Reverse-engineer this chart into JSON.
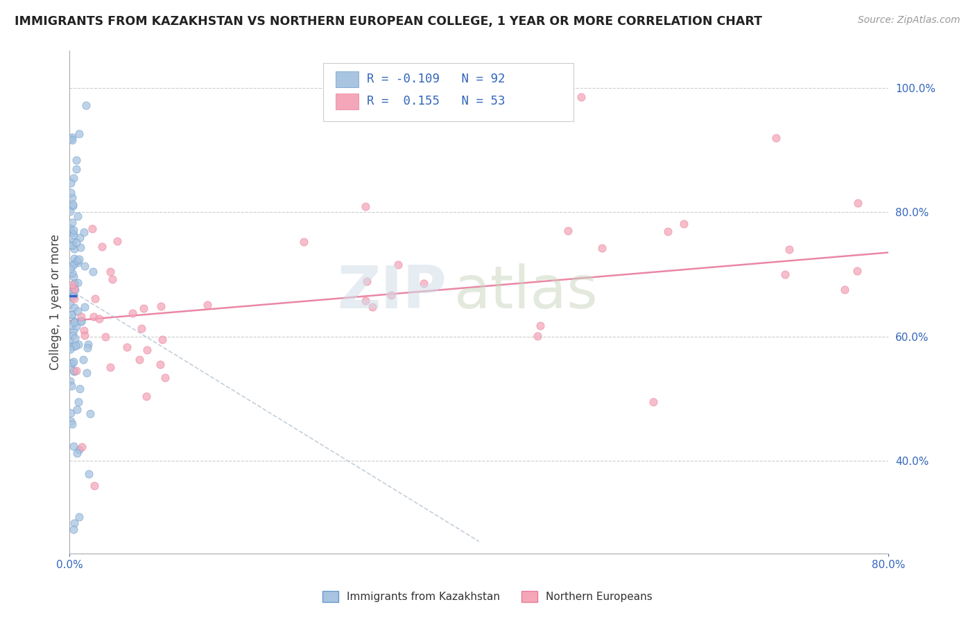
{
  "title": "IMMIGRANTS FROM KAZAKHSTAN VS NORTHERN EUROPEAN COLLEGE, 1 YEAR OR MORE CORRELATION CHART",
  "source": "Source: ZipAtlas.com",
  "ylabel": "College, 1 year or more",
  "legend_label1": "Immigrants from Kazakhstan",
  "legend_label2": "Northern Europeans",
  "color1": "#a8c4e0",
  "color1_edge": "#6699cc",
  "color2": "#f4a7b9",
  "color2_edge": "#e8799a",
  "trendline1_solid_color": "#3366cc",
  "trendline1_dash_color": "#aabbcc",
  "trendline2_color": "#e8799a",
  "watermark_zip_color": "#c8d8e8",
  "watermark_atlas_color": "#c8d8c0",
  "background_color": "#ffffff",
  "xlim": [
    0.0,
    0.8
  ],
  "ylim": [
    0.25,
    1.06
  ],
  "right_yticks": [
    0.4,
    0.6,
    0.8,
    1.0
  ],
  "right_yticklabels": [
    "40.0%",
    "60.0%",
    "80.0%",
    "100.0%"
  ],
  "xtick_left": "0.0%",
  "xtick_right": "80.0%",
  "pink_trendline_x": [
    0.0,
    0.8
  ],
  "pink_trendline_y": [
    0.625,
    0.735
  ],
  "blue_solid_line_x": [
    0.0,
    0.006
  ],
  "blue_solid_line_y": [
    0.665,
    0.665
  ],
  "blue_dash_line_x": [
    0.0,
    0.4
  ],
  "blue_dash_line_y": [
    0.675,
    0.27
  ]
}
